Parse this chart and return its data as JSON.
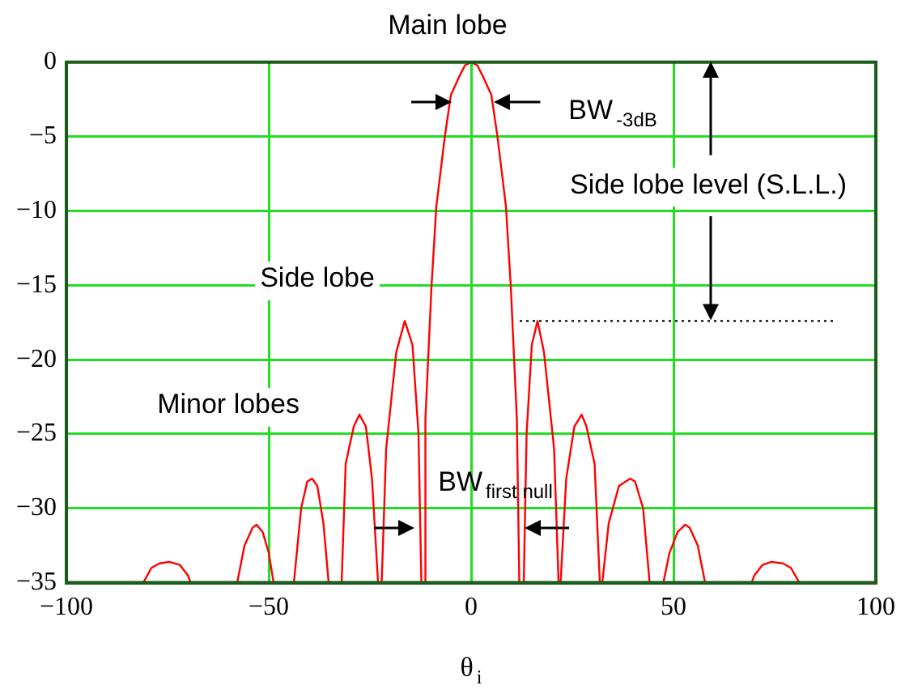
{
  "chart_data": {
    "type": "line",
    "title": "Main lobe",
    "xlabel": "θ$_{i}$",
    "xlim": [
      -100,
      100
    ],
    "xticks": [
      -100,
      -50,
      0,
      50,
      100
    ],
    "ylim": [
      -35,
      0
    ],
    "yticks": [
      -35,
      -30,
      -25,
      -20,
      -15,
      -10,
      -5,
      0
    ],
    "grid": true,
    "legend": false,
    "marker": "none",
    "annotations": [
      "Side lobe",
      "Minor lobes",
      "BW$_{-3dB}$",
      "Side lobe level (S.L.L.)",
      "BW$_{first null}$"
    ],
    "series": [
      {
        "color": "#ff0000",
        "line_style": "solid",
        "x": [
          -81,
          -79,
          -77,
          -74.6,
          -72,
          -70,
          -69.3,
          -57.8,
          -56,
          -54,
          -53,
          -51.5,
          -50,
          -48.8,
          -43.8,
          -42,
          -40.5,
          -39.3,
          -38,
          -36.5,
          -35.2,
          -32,
          -31,
          -29,
          -27.6,
          -26,
          -24.5,
          -23,
          -22.1,
          -21,
          -18.5,
          -16.4,
          -14.5,
          -13,
          -12.3,
          -11.6,
          -11.3,
          -9.8,
          -8.6,
          -6.5,
          -5,
          -3,
          -1.5,
          0,
          1.5,
          3,
          5,
          6.5,
          8.6,
          9.8,
          11.3,
          11.9,
          13,
          13.7,
          15,
          16.4,
          18,
          20.5,
          21.6,
          22.1,
          23.5,
          25.5,
          27.3,
          28.5,
          30.5,
          31.8,
          32.4,
          34,
          36.5,
          39.3,
          40.5,
          42.5,
          44.1,
          47.5,
          49,
          51,
          52.9,
          54,
          56,
          57.8,
          69.3,
          70,
          72,
          74.2,
          77,
          79,
          81.1
        ],
        "values": [
          -35,
          -34,
          -33.7,
          -33.6,
          -33.8,
          -34.5,
          -35,
          -35,
          -32.5,
          -31.3,
          -31.1,
          -31.6,
          -33,
          -35,
          -35,
          -30,
          -28.2,
          -28,
          -28.5,
          -31,
          -35,
          -35,
          -27,
          -24.5,
          -23.7,
          -24.5,
          -28,
          -35,
          -35,
          -26,
          -19.5,
          -17.4,
          -19,
          -25,
          -35,
          -35,
          -24,
          -15.1,
          -9.7,
          -5,
          -2.2,
          -1,
          -0.2,
          0,
          -0.2,
          -1,
          -2.2,
          -5,
          -9.7,
          -15.1,
          -24,
          -35,
          -35,
          -25,
          -19,
          -17.4,
          -19.5,
          -26,
          -35,
          -35,
          -28,
          -24.5,
          -23.7,
          -24.5,
          -27,
          -35,
          -35,
          -31,
          -28.5,
          -28,
          -28.2,
          -30,
          -35,
          -35,
          -33,
          -31.6,
          -31.1,
          -31.3,
          -32.5,
          -35,
          -35,
          -34.5,
          -33.8,
          -33.6,
          -33.7,
          -34,
          -35
        ]
      },
      {
        "color": "#000000",
        "line_style": "dotted",
        "x": [
          12,
          90
        ],
        "values": [
          -17.4,
          -17.4
        ]
      }
    ]
  }
}
